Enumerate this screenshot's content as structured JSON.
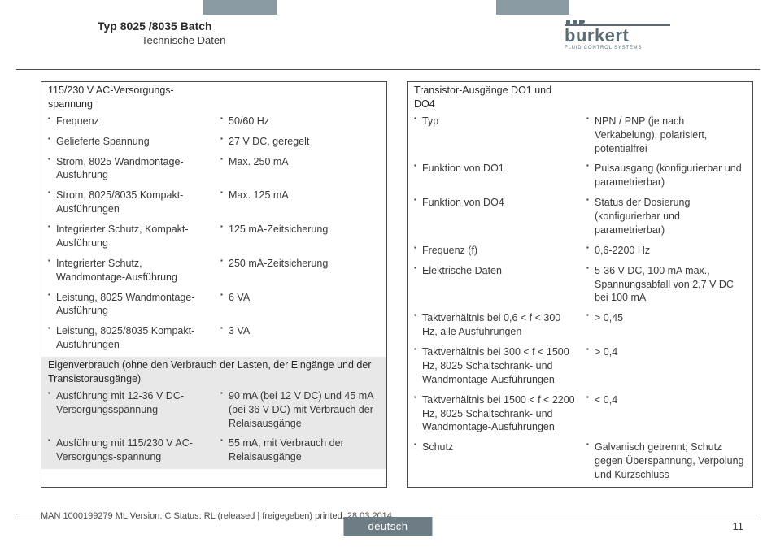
{
  "header": {
    "title": "Typ 8025 /8035 Batch",
    "subtitle": "Technische Daten",
    "logo_name": "burkert",
    "logo_tag": "FLUID CONTROL SYSTEMS"
  },
  "left": {
    "sec1_head": "115/230 V AC-Versorgungs-spannung",
    "rows1": [
      {
        "l": "Frequenz",
        "r": "50/60 Hz"
      },
      {
        "l": "Gelieferte Spannung",
        "r": "27 V DC, geregelt"
      },
      {
        "l": "Strom, 8025 Wandmontage-Ausführung",
        "r": "Max. 250 mA"
      },
      {
        "l": "Strom, 8025/8035 Kompakt-Ausführungen",
        "r": "Max. 125 mA"
      },
      {
        "l": "Integrierter Schutz, Kompakt-Ausführung",
        "r": "125 mA-Zeitsicherung"
      },
      {
        "l": "Integrierter Schutz, Wandmontage-Ausführung",
        "r": "250 mA-Zeitsicherung"
      },
      {
        "l": "Leistung, 8025 Wandmontage-Ausführung",
        "r": "6 VA"
      },
      {
        "l": "Leistung, 8025/8035 Kompakt-Ausführungen",
        "r": "3 VA"
      }
    ],
    "sec2_head": "Eigenverbrauch (ohne den Verbrauch der Lasten, der Eingänge und der Transistorausgänge)",
    "rows2": [
      {
        "l": "Ausführung mit 12-36 V DC-Versorgungsspannung",
        "r": "90 mA (bei 12 V DC) und 45 mA (bei 36 V DC) mit Verbrauch der Relaisausgänge"
      },
      {
        "l": "Ausführung mit 115/230 V AC-Versorgungs-spannung",
        "r": "55 mA, mit Verbrauch der Relaisausgänge"
      }
    ]
  },
  "right": {
    "sec1_head": "Transistor-Ausgänge DO1 und DO4",
    "rows1": [
      {
        "l": "Typ",
        "r": "NPN / PNP (je nach Verkabelung), polarisiert, potentialfrei"
      },
      {
        "l": "Funktion von DO1",
        "r": "Pulsausgang (konfigurierbar und parametrierbar)"
      },
      {
        "l": "Funktion von DO4",
        "r": "Status der Dosierung (konfigurierbar und parametrierbar)"
      },
      {
        "l": "Frequenz (f)",
        "r": "0,6-2200 Hz"
      },
      {
        "l": "Elektrische Daten",
        "r": "5-36 V DC, 100 mA max., Spannungsabfall von 2,7 V DC bei 100 mA"
      },
      {
        "l": "Taktverhältnis bei 0,6 < f < 300 Hz, alle Ausführungen",
        "r": "> 0,45"
      },
      {
        "l": "Taktverhältnis bei 300 < f < 1500 Hz, 8025 Schaltschrank- und Wandmontage-Ausführungen",
        "r": "> 0,4"
      },
      {
        "l": "Taktverhältnis bei 1500 < f < 2200 Hz, 8025 Schaltschrank- und Wandmontage-Ausführungen",
        "r": "< 0,4"
      },
      {
        "l": "Schutz",
        "r": "Galvanisch getrennt; Schutz gegen Überspannung, Verpolung und Kurzschluss"
      }
    ]
  },
  "footer": {
    "doc": "MAN  1000199279  ML  Version: C Status: RL (released | freigegeben)  printed: 28.03.2014",
    "lang": "deutsch",
    "page": "11"
  }
}
